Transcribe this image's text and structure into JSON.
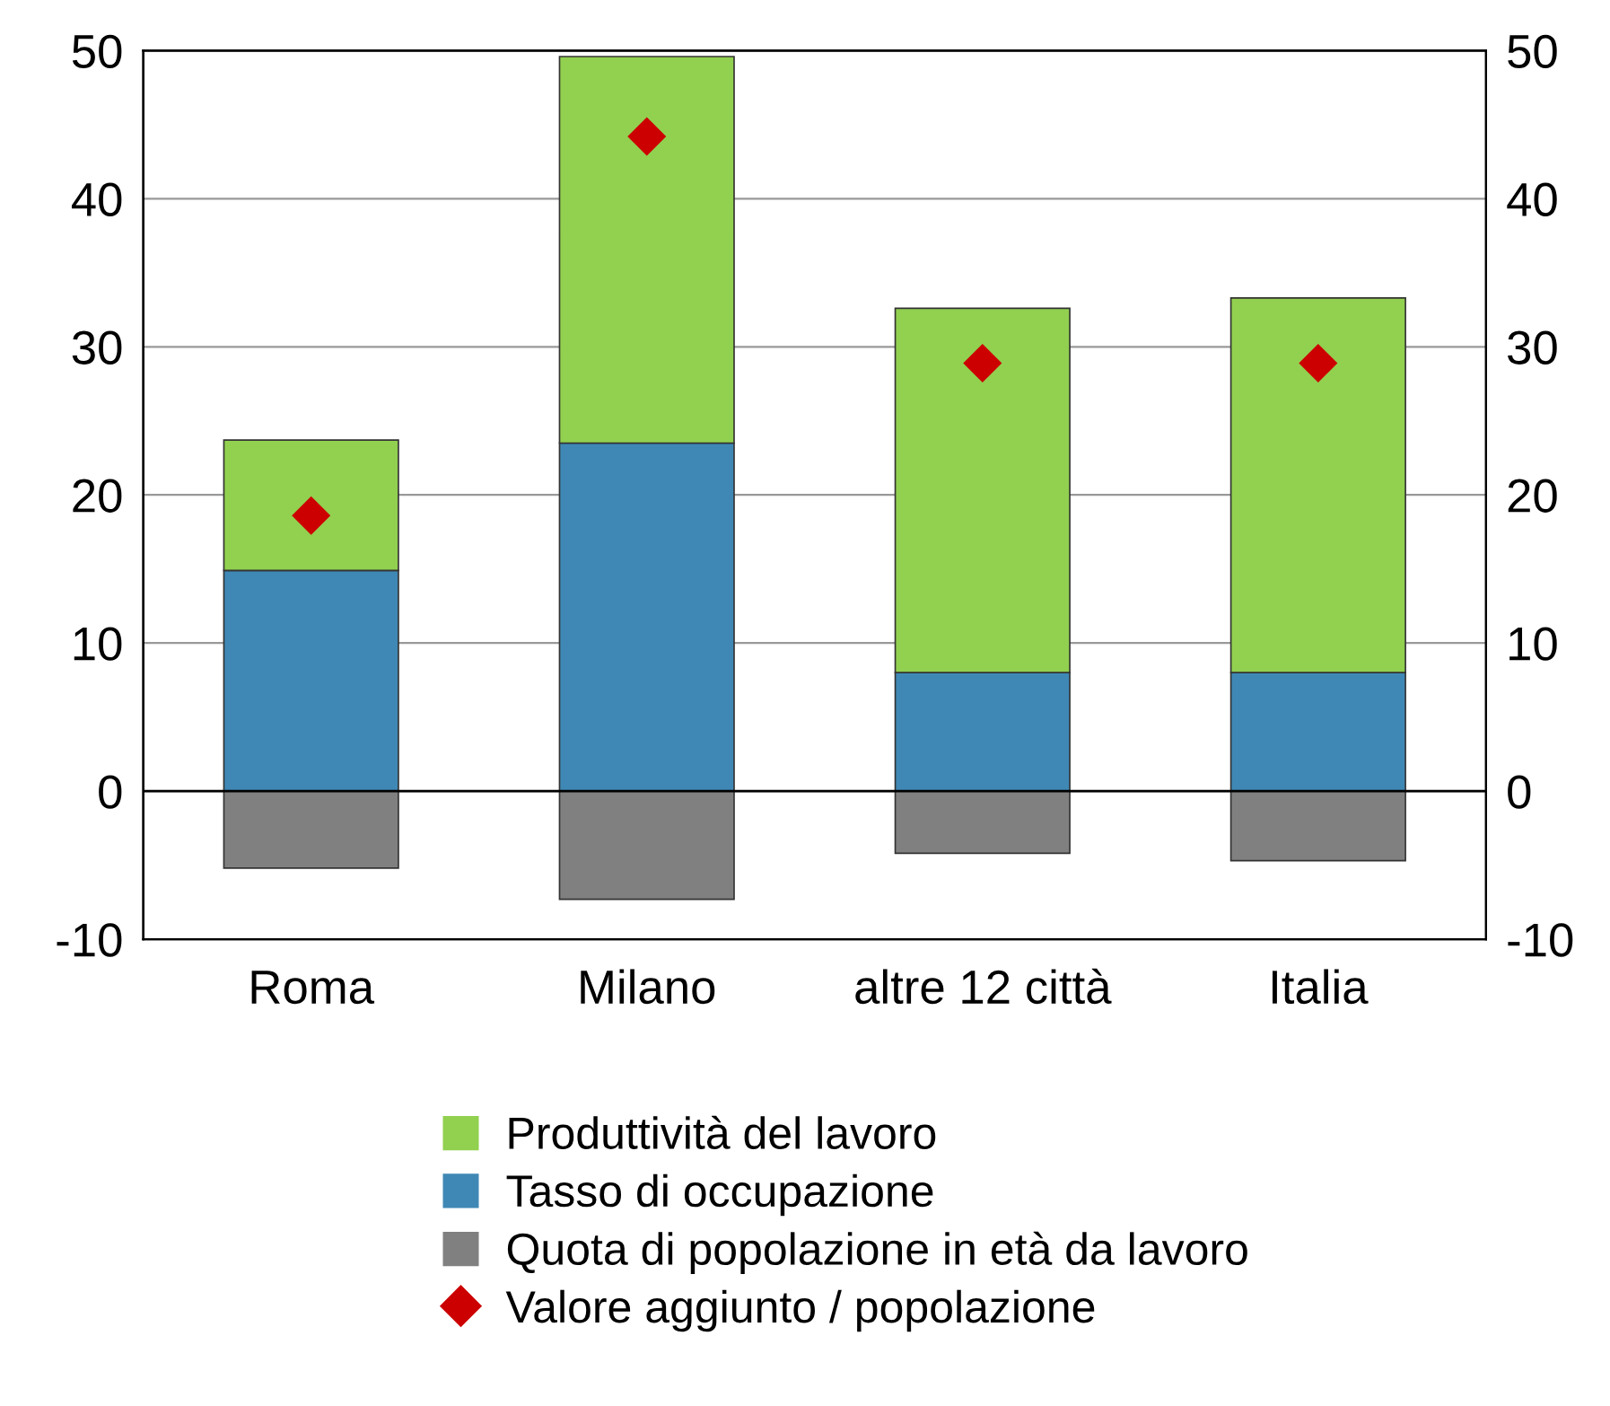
{
  "chart_data": {
    "type": "bar",
    "stacked": true,
    "categories": [
      "Roma",
      "Milano",
      "altre 12 città",
      "Italia"
    ],
    "series": [
      {
        "name": "Tasso di occupazione",
        "color": "#3f88b5",
        "values": [
          14.9,
          23.5,
          8.0,
          8.0
        ]
      },
      {
        "name": "Produttività del lavoro",
        "color": "#92d050",
        "values": [
          8.8,
          26.1,
          24.6,
          25.3
        ]
      },
      {
        "name": "Quota di popolazione in età da lavoro",
        "color": "#808080",
        "values": [
          -5.2,
          -7.3,
          -4.2,
          -4.7
        ]
      },
      {
        "name": "Valore aggiunto / popolazione",
        "type": "scatter",
        "marker": "diamond",
        "color": "#cc0000",
        "x": [
          "Roma",
          "Milano",
          "altre 12 città",
          "Italia"
        ],
        "values": [
          18.6,
          44.2,
          28.9,
          28.9
        ]
      }
    ],
    "ylim": [
      -10,
      50
    ],
    "yticks": [
      -10,
      0,
      10,
      20,
      30,
      40,
      50
    ],
    "y2lim": [
      -10,
      50
    ],
    "y2ticks": [
      -10,
      0,
      10,
      20,
      30,
      40,
      50
    ],
    "grid": "y",
    "legend": "bottom"
  }
}
